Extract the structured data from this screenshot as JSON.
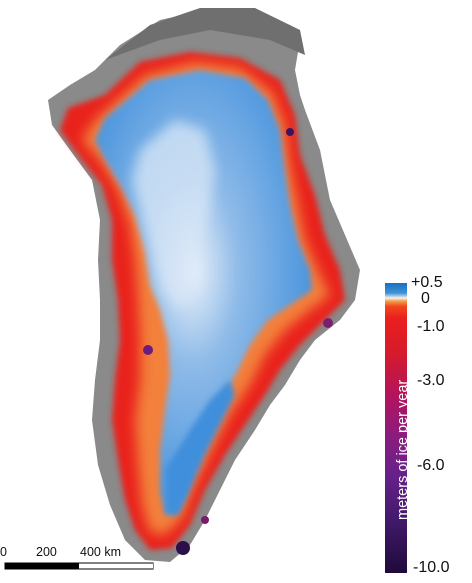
{
  "legend": {
    "title": "meters of ice per year",
    "ticks": [
      "+0.5",
      "0",
      "-1.0",
      "-3.0",
      "-6.0",
      "-10.0"
    ],
    "values": [
      0.5,
      0,
      -1.0,
      -3.0,
      -6.0,
      -10.0
    ]
  },
  "scale_bar": {
    "labels": [
      "0",
      "200",
      "400 km"
    ],
    "values_km": [
      0,
      200,
      400
    ]
  },
  "colors": {
    "gain": "#3f8fdc",
    "neutral": "#f6f1ea",
    "low_loss": "#f2481c",
    "high_loss": "#41196a",
    "land": "#8a8a8a"
  }
}
